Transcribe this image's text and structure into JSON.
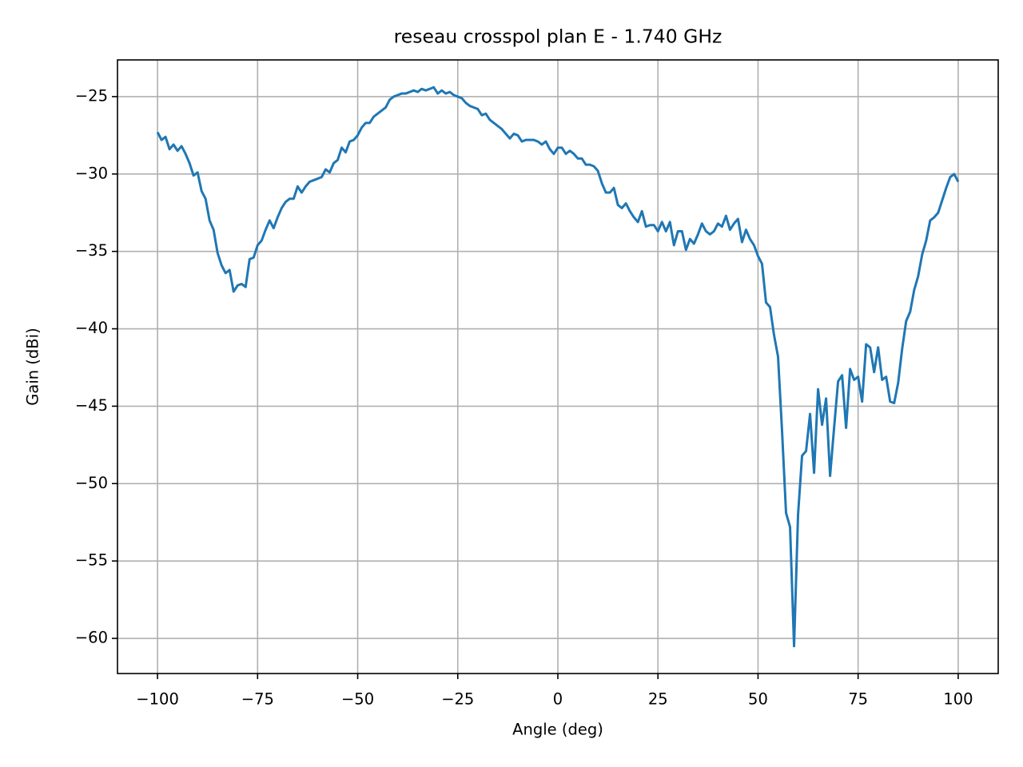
{
  "chart_data": {
    "type": "line",
    "title": "reseau crosspol plan E - 1.740 GHz",
    "xlabel": "Angle (deg)",
    "ylabel": "Gain (dBi)",
    "xlim": [
      -110,
      110
    ],
    "ylim": [
      -62.27,
      -22.63
    ],
    "grid": true,
    "xticks": [
      {
        "value": -100,
        "label": "−100"
      },
      {
        "value": -75,
        "label": "−75"
      },
      {
        "value": -50,
        "label": "−50"
      },
      {
        "value": -25,
        "label": "−25"
      },
      0,
      25,
      50,
      75,
      100
    ],
    "yticks": [
      {
        "value": -25,
        "label": "−25"
      },
      {
        "value": -30,
        "label": "−30"
      },
      {
        "value": -35,
        "label": "−35"
      },
      {
        "value": -40,
        "label": "−40"
      },
      {
        "value": -45,
        "label": "−45"
      },
      {
        "value": -50,
        "label": "−50"
      },
      {
        "value": -55,
        "label": "−55"
      },
      {
        "value": -60,
        "label": "−60"
      }
    ],
    "x": [
      -100,
      -99,
      -98,
      -97,
      -96,
      -95,
      -94,
      -93,
      -92,
      -91,
      -90,
      -89,
      -88,
      -87,
      -86,
      -85,
      -84,
      -83,
      -82,
      -81,
      -80,
      -79,
      -78,
      -77,
      -76,
      -75,
      -74,
      -73,
      -72,
      -71,
      -70,
      -69,
      -68,
      -67,
      -66,
      -65,
      -64,
      -63,
      -62,
      -61,
      -60,
      -59,
      -58,
      -57,
      -56,
      -55,
      -54,
      -53,
      -52,
      -51,
      -50,
      -49,
      -48,
      -47,
      -46,
      -45,
      -44,
      -43,
      -42,
      -41,
      -40,
      -39,
      -38,
      -37,
      -36,
      -35,
      -34,
      -33,
      -32,
      -31,
      -30,
      -29,
      -28,
      -27,
      -26,
      -25,
      -24,
      -23,
      -22,
      -21,
      -20,
      -19,
      -18,
      -17,
      -16,
      -15,
      -14,
      -13,
      -12,
      -11,
      -10,
      -9,
      -8,
      -7,
      -6,
      -5,
      -4,
      -3,
      -2,
      -1,
      0,
      1,
      2,
      3,
      4,
      5,
      6,
      7,
      8,
      9,
      10,
      11,
      12,
      13,
      14,
      15,
      16,
      17,
      18,
      19,
      20,
      21,
      22,
      23,
      24,
      25,
      26,
      27,
      28,
      29,
      30,
      31,
      32,
      33,
      34,
      35,
      36,
      37,
      38,
      39,
      40,
      41,
      42,
      43,
      44,
      45,
      46,
      47,
      48,
      49,
      50,
      51,
      52,
      53,
      54,
      55,
      56,
      57,
      58,
      59,
      60,
      61,
      62,
      63,
      64,
      65,
      66,
      67,
      68,
      69,
      70,
      71,
      72,
      73,
      74,
      75,
      76,
      77,
      78,
      79,
      80,
      81,
      82,
      83,
      84,
      85,
      86,
      87,
      88,
      89,
      90,
      91,
      92,
      93,
      94,
      95,
      96,
      97,
      98,
      99,
      100
    ],
    "series": [
      {
        "color": "#1f77b4",
        "values": [
          -27.3,
          -27.8,
          -27.6,
          -28.4,
          -28.1,
          -28.5,
          -28.2,
          -28.7,
          -29.3,
          -30.1,
          -29.9,
          -31.1,
          -31.6,
          -33.0,
          -33.6,
          -35.1,
          -35.9,
          -36.4,
          -36.2,
          -37.6,
          -37.2,
          -37.1,
          -37.3,
          -35.5,
          -35.4,
          -34.6,
          -34.3,
          -33.6,
          -33.0,
          -33.5,
          -32.8,
          -32.2,
          -31.8,
          -31.6,
          -31.6,
          -30.8,
          -31.2,
          -30.8,
          -30.5,
          -30.4,
          -30.3,
          -30.2,
          -29.7,
          -29.9,
          -29.3,
          -29.1,
          -28.3,
          -28.6,
          -27.9,
          -27.8,
          -27.5,
          -27.0,
          -26.7,
          -26.7,
          -26.3,
          -26.1,
          -25.9,
          -25.7,
          -25.2,
          -25.0,
          -24.9,
          -24.8,
          -24.8,
          -24.7,
          -24.6,
          -24.7,
          -24.5,
          -24.6,
          -24.5,
          -24.4,
          -24.8,
          -24.6,
          -24.8,
          -24.7,
          -24.9,
          -25.0,
          -25.1,
          -25.4,
          -25.6,
          -25.7,
          -25.8,
          -26.2,
          -26.1,
          -26.5,
          -26.7,
          -26.9,
          -27.1,
          -27.4,
          -27.7,
          -27.4,
          -27.5,
          -27.9,
          -27.8,
          -27.8,
          -27.8,
          -27.9,
          -28.1,
          -27.9,
          -28.4,
          -28.7,
          -28.3,
          -28.3,
          -28.7,
          -28.5,
          -28.7,
          -29.0,
          -29.0,
          -29.4,
          -29.4,
          -29.5,
          -29.8,
          -30.6,
          -31.2,
          -31.2,
          -30.9,
          -32.0,
          -32.2,
          -31.9,
          -32.4,
          -32.8,
          -33.1,
          -32.4,
          -33.4,
          -33.3,
          -33.3,
          -33.7,
          -33.1,
          -33.7,
          -33.1,
          -34.6,
          -33.7,
          -33.7,
          -34.9,
          -34.2,
          -34.5,
          -33.9,
          -33.2,
          -33.7,
          -33.9,
          -33.7,
          -33.2,
          -33.4,
          -32.7,
          -33.6,
          -33.2,
          -32.9,
          -34.4,
          -33.6,
          -34.2,
          -34.6,
          -35.3,
          -35.8,
          -38.3,
          -38.6,
          -40.4,
          -41.8,
          -46.6,
          -51.9,
          -52.8,
          -60.5,
          -52.0,
          -48.2,
          -47.9,
          -45.5,
          -49.3,
          -43.9,
          -46.2,
          -44.5,
          -49.5,
          -46.4,
          -43.4,
          -43.0,
          -46.4,
          -42.6,
          -43.3,
          -43.1,
          -44.7,
          -41.0,
          -41.2,
          -42.8,
          -41.2,
          -43.3,
          -43.1,
          -44.7,
          -44.8,
          -43.5,
          -41.3,
          -39.5,
          -38.9,
          -37.5,
          -36.6,
          -35.2,
          -34.3,
          -33.0,
          -32.8,
          -32.5,
          -31.7,
          -30.9,
          -30.2,
          -30.0,
          -30.5
        ]
      }
    ]
  }
}
